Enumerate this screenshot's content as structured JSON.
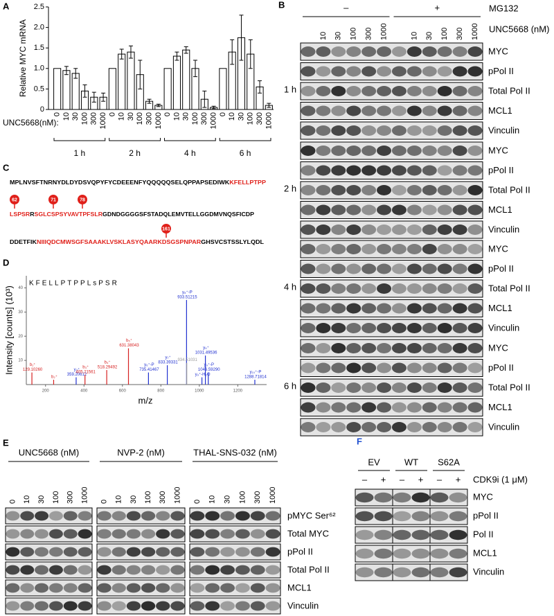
{
  "panel_labels": [
    "A",
    "B",
    "C",
    "D",
    "E",
    "F"
  ],
  "chart_data": [
    {
      "type": "bar",
      "y_label": "Relative MYC mRNA",
      "x_label": "UNC5668(nM):",
      "color": "#ffffff",
      "categories": [
        "0",
        "10",
        "30",
        "100",
        "300",
        "1000",
        "0",
        "10",
        "30",
        "100",
        "300",
        "1000",
        "0",
        "10",
        "30",
        "100",
        "300",
        "1000",
        "0",
        "10",
        "30",
        "100",
        "300",
        "1000"
      ],
      "group_labels": [
        "1 h",
        "2 h",
        "4 h",
        "6 h"
      ],
      "values": [
        1.0,
        0.95,
        0.88,
        0.45,
        0.3,
        0.3,
        1.0,
        1.35,
        1.4,
        0.85,
        0.2,
        0.1,
        1.0,
        1.3,
        1.45,
        1.0,
        0.25,
        0.05,
        1.0,
        1.4,
        1.75,
        1.35,
        0.55,
        0.1
      ],
      "errors": [
        0,
        0.1,
        0.12,
        0.15,
        0.12,
        0.1,
        0,
        0.12,
        0.15,
        0.35,
        0.05,
        0.03,
        0,
        0.1,
        0.08,
        0.2,
        0.2,
        0.03,
        0,
        0.3,
        0.55,
        0.35,
        0.15,
        0.05
      ],
      "ylim": [
        0,
        2.5
      ],
      "yticks": [
        0,
        0.5,
        {
          "value": 1,
          "label": "1.0"
        },
        1.5,
        {
          "value": 2,
          "label": "2.0"
        },
        2.5
      ]
    },
    {
      "type": "stem",
      "y_label": "Intensity [counts] (10³)",
      "x_label": "m/z",
      "peptide": "KFELLPTPPLsPSR",
      "x": [
        129.1026,
        242.19,
        359.20612,
        405.21561,
        518.29492,
        631.38043,
        735.41467,
        833.39331,
        933.51215,
        934.51031,
        1013.5,
        1031.49536,
        1046.5929,
        1288.71814
      ],
      "values": [
        5,
        2,
        3,
        4,
        6,
        15,
        5,
        8,
        35,
        9,
        3,
        12,
        5,
        2
      ],
      "colors": [
        "#d62020",
        "#d62020",
        "#2030d0",
        "#d62020",
        "#d62020",
        "#d62020",
        "#2030d0",
        "#2030d0",
        "#2030d0",
        "#999999",
        "#2030d0",
        "#2030d0",
        "#2030d0",
        "#2030d0"
      ],
      "ion_labels": [
        "b₁⁺",
        "b₂⁺",
        "y₃⁺",
        "b₃⁺",
        "b₄⁺",
        "b₅⁺",
        "y₆⁺-P",
        "y₇⁺",
        "y₈⁺-P",
        null,
        "y₉⁺-H₂O",
        "y₉⁺",
        "y₉⁺-P",
        "y₁₀⁺-P"
      ],
      "mz_labels": [
        "129.10260",
        null,
        "359.20612",
        "405.21561",
        "518.29492",
        "631.38043",
        "735.41467",
        "833.39331",
        "933.51215",
        "934.51031",
        null,
        "1031.49536",
        "1046.59290",
        "1288.71814"
      ],
      "xlim": [
        100,
        1350
      ],
      "xticks": [
        200,
        400,
        600,
        800,
        1000,
        1200
      ],
      "ylim": [
        0,
        45
      ],
      "yticks": [
        10,
        20,
        30,
        40
      ]
    }
  ],
  "blot_b": {
    "treatment": "MG132",
    "treatment_groups": [
      "–",
      "+"
    ],
    "dose_label": "UNC5668 (nM)",
    "lanes": [
      null,
      "10",
      "30",
      "100",
      "300",
      "1000",
      null,
      "10",
      "30",
      "100",
      "300",
      "1000"
    ],
    "time_points": [
      "1 h",
      "2 h",
      "4 h",
      "6 h"
    ],
    "rows": [
      "MYC",
      "pPol II",
      "Total Pol II",
      "MCL1",
      "Vinculin"
    ]
  },
  "sequence": {
    "lines": [
      [
        {
          "text": "MPLNVSFTNRNYDLDYDSVQPYFYCDEEENFYQQQQQSELQPPAPSEDIWK",
          "highlight": false
        },
        {
          "text": "KFELLPTPP",
          "highlight": true
        }
      ],
      [
        {
          "text": "LSPSR",
          "highlight": true
        },
        {
          "text": "R",
          "highlight": false
        },
        {
          "text": "SGLCSPSYVAVTPFSLR",
          "highlight": true
        },
        {
          "text": "GDNDGGGGSFSTADQLEMVTELLGGDMVNQSFICDP",
          "highlight": false
        }
      ],
      [
        {
          "text": "DDETFIK",
          "highlight": false
        },
        {
          "text": "NIIIQDCMWSGFSAAAKLVSKLASYQAARKDSGSPNPAR",
          "highlight": true
        },
        {
          "text": "GHSVCSTSSLYLQDL",
          "highlight": false
        }
      ]
    ],
    "sites": [
      "62",
      "71",
      "78",
      "161"
    ]
  },
  "blot_e": {
    "groups": [
      {
        "name": "UNC5668 (nM)",
        "lanes": [
          "0",
          "10",
          "30",
          "100",
          "300",
          "1000"
        ]
      },
      {
        "name": "NVP-2 (nM)",
        "lanes": [
          "0",
          "10",
          "30",
          "100",
          "300",
          "1000"
        ]
      },
      {
        "name": "THAL-SNS-032 (nM)",
        "lanes": [
          "0",
          "10",
          "30",
          "100",
          "300",
          "1000"
        ]
      }
    ],
    "rows": [
      "pMYC Ser⁶²",
      "Total MYC",
      "pPol II",
      "Total Pol II",
      "MCL1",
      "Vinculin"
    ]
  },
  "blot_f": {
    "groups": [
      "EV",
      "WT",
      "S62A"
    ],
    "lanes": [
      "–",
      "+",
      "–",
      "+",
      "–",
      "+"
    ],
    "treatment": "CDK9i (1 μM)",
    "rows": [
      "MYC",
      "pPol II",
      "Pol II",
      "MCL1",
      "Vinculin"
    ]
  }
}
